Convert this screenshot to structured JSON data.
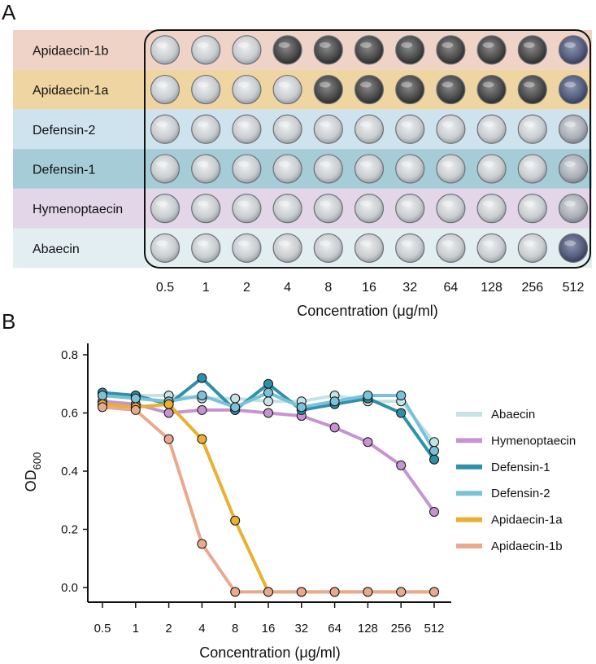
{
  "panel_a": {
    "letter": "A",
    "rows": [
      {
        "label": "Apidaecin-1b",
        "color": "#efd3c6",
        "wells": [
          "clear",
          "clear",
          "clear",
          "dark",
          "dark",
          "dark",
          "dark",
          "dark",
          "dark",
          "dark",
          "blue"
        ]
      },
      {
        "label": "Apidaecin-1a",
        "color": "#efd5a2",
        "wells": [
          "clear",
          "clear",
          "clear",
          "clear",
          "dark",
          "dark",
          "dark",
          "dark",
          "dark",
          "dark",
          "blue"
        ]
      },
      {
        "label": "Defensin-2",
        "color": "#cfe3ee",
        "wells": [
          "clear",
          "clear",
          "clear",
          "clear",
          "clear",
          "clear",
          "clear",
          "clear",
          "clear",
          "clear",
          "dim"
        ]
      },
      {
        "label": "Defensin-1",
        "color": "#a6ccd8",
        "wells": [
          "clear",
          "clear",
          "clear",
          "clear",
          "clear",
          "clear",
          "clear",
          "clear",
          "clear",
          "clear",
          "dim"
        ]
      },
      {
        "label": "Hymenoptaecin",
        "color": "#e3d6e9",
        "wells": [
          "clear",
          "clear",
          "clear",
          "clear",
          "clear",
          "clear",
          "clear",
          "clear",
          "clear",
          "clear",
          "dim"
        ]
      },
      {
        "label": "Abaecin",
        "color": "#e2eef0",
        "wells": [
          "clear",
          "clear",
          "clear",
          "clear",
          "clear",
          "clear",
          "clear",
          "clear",
          "clear",
          "clear",
          "blue"
        ]
      }
    ],
    "concentrations": [
      "0.5",
      "1",
      "2",
      "4",
      "8",
      "16",
      "32",
      "64",
      "128",
      "256",
      "512"
    ],
    "xlabel": "Concentration (μg/ml)"
  },
  "panel_b": {
    "letter": "B",
    "chart_data": {
      "type": "line",
      "categories": [
        "0.5",
        "1",
        "2",
        "4",
        "8",
        "16",
        "32",
        "64",
        "128",
        "256",
        "512"
      ],
      "xlabel": "Concentration (μg/ml)",
      "ylabel_main": "OD",
      "ylabel_sub": "600",
      "yticks": [
        "0.0",
        "0.2",
        "0.4",
        "0.6",
        "0.8"
      ],
      "ylim": [
        -0.03,
        0.85
      ],
      "series": [
        {
          "name": "Abaecin",
          "color": "#c6e2e3",
          "values": [
            0.66,
            0.66,
            0.66,
            0.65,
            0.65,
            0.64,
            0.64,
            0.66,
            0.64,
            0.64,
            0.5
          ]
        },
        {
          "name": "Hymenoptaecin",
          "color": "#c595d1",
          "values": [
            0.64,
            0.63,
            0.6,
            0.61,
            0.61,
            0.6,
            0.59,
            0.55,
            0.5,
            0.42,
            0.26
          ]
        },
        {
          "name": "Defensin-1",
          "color": "#2f90aa",
          "values": [
            0.67,
            0.66,
            0.63,
            0.72,
            0.61,
            0.7,
            0.61,
            0.63,
            0.65,
            0.6,
            0.44
          ]
        },
        {
          "name": "Defensin-2",
          "color": "#79c2d9",
          "values": [
            0.66,
            0.65,
            0.64,
            0.66,
            0.62,
            0.67,
            0.62,
            0.64,
            0.66,
            0.66,
            0.47
          ]
        },
        {
          "name": "Apidaecin-1a",
          "color": "#eab02f",
          "values": [
            0.63,
            0.62,
            0.63,
            0.51,
            0.23,
            -0.015,
            -0.015,
            -0.015,
            -0.015,
            -0.015,
            -0.015
          ]
        },
        {
          "name": "Apidaecin-1b",
          "color": "#eaa98c",
          "values": [
            0.62,
            0.61,
            0.51,
            0.15,
            -0.015,
            -0.015,
            -0.015,
            -0.015,
            -0.015,
            -0.015,
            -0.015
          ]
        }
      ],
      "legend_position": "right"
    }
  }
}
